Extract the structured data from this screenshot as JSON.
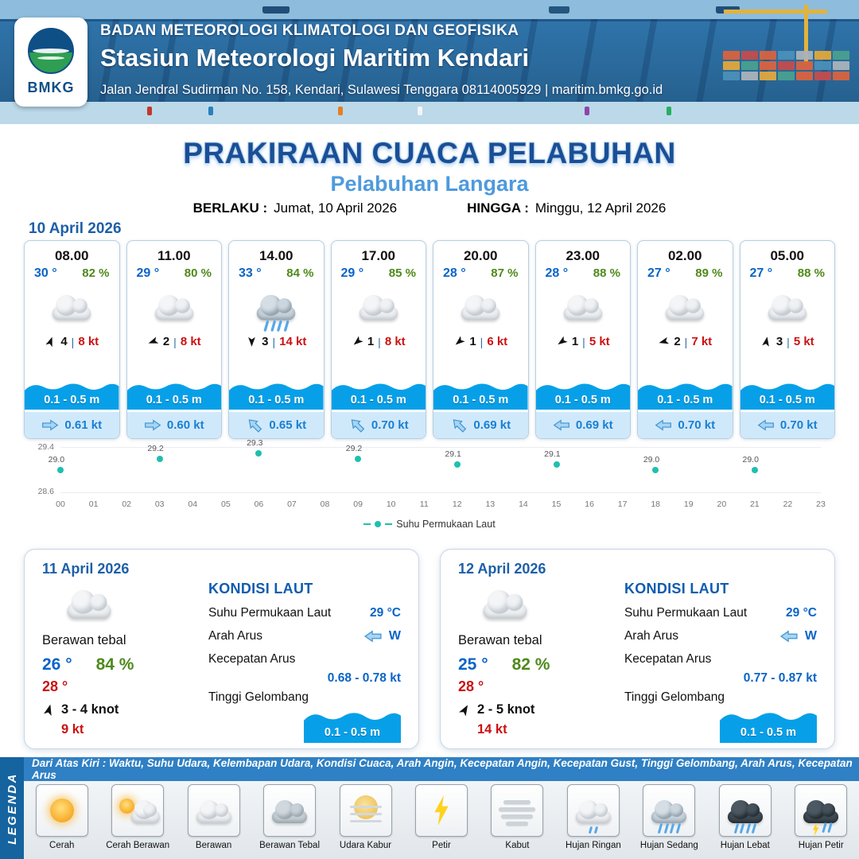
{
  "header": {
    "agency": "BADAN METEOROLOGI KLIMATOLOGI DAN GEOFISIKA",
    "station": "Stasiun Meteorologi Maritim Kendari",
    "address": "Jalan Jendral Sudirman No. 158, Kendari, Sulawesi Tenggara  08114005929 | maritim.bmkg.go.id",
    "logo_text": "BMKG"
  },
  "title": {
    "main": "PRAKIRAAN CUACA PELABUHAN",
    "port": "Pelabuhan Langara",
    "valid_label": "BERLAKU :",
    "valid_value": "Jumat, 10 April 2026",
    "until_label": "HINGGA :",
    "until_value": "Minggu, 12 April 2026"
  },
  "hourly": {
    "date": "10 April 2026",
    "cards": [
      {
        "time": "08.00",
        "temp": "30 °",
        "humidity": "82 %",
        "icon": "cloudy",
        "wind_dir_deg": 20,
        "wind_speed": "4",
        "gust": "8 kt",
        "wave": "0.1 - 0.5 m",
        "current_dir_deg": 0,
        "current": "0.61 kt"
      },
      {
        "time": "11.00",
        "temp": "29 °",
        "humidity": "80 %",
        "icon": "cloudy",
        "wind_dir_deg": 250,
        "wind_speed": "2",
        "gust": "8 kt",
        "wave": "0.1 - 0.5 m",
        "current_dir_deg": 0,
        "current": "0.60 kt"
      },
      {
        "time": "14.00",
        "temp": "33 °",
        "humidity": "84 %",
        "icon": "moderate-rain",
        "wind_dir_deg": 180,
        "wind_speed": "3",
        "gust": "14 kt",
        "wave": "0.1 - 0.5 m",
        "current_dir_deg": -135,
        "current": "0.65 kt"
      },
      {
        "time": "17.00",
        "temp": "29 °",
        "humidity": "85 %",
        "icon": "cloudy",
        "wind_dir_deg": 230,
        "wind_speed": "1",
        "gust": "8 kt",
        "wave": "0.1 - 0.5 m",
        "current_dir_deg": -135,
        "current": "0.70 kt"
      },
      {
        "time": "20.00",
        "temp": "28 °",
        "humidity": "87 %",
        "icon": "cloudy",
        "wind_dir_deg": 230,
        "wind_speed": "1",
        "gust": "6 kt",
        "wave": "0.1 - 0.5 m",
        "current_dir_deg": -135,
        "current": "0.69 kt"
      },
      {
        "time": "23.00",
        "temp": "28 °",
        "humidity": "88 %",
        "icon": "cloudy",
        "wind_dir_deg": 235,
        "wind_speed": "1",
        "gust": "5 kt",
        "wave": "0.1 - 0.5 m",
        "current_dir_deg": 180,
        "current": "0.69 kt"
      },
      {
        "time": "02.00",
        "temp": "27 °",
        "humidity": "89 %",
        "icon": "cloudy",
        "wind_dir_deg": 255,
        "wind_speed": "2",
        "gust": "7 kt",
        "wave": "0.1 - 0.5 m",
        "current_dir_deg": 180,
        "current": "0.70 kt"
      },
      {
        "time": "05.00",
        "temp": "27 °",
        "humidity": "88 %",
        "icon": "cloudy",
        "wind_dir_deg": 10,
        "wind_speed": "3",
        "gust": "5 kt",
        "wave": "0.1 - 0.5 m",
        "current_dir_deg": 180,
        "current": "0.70 kt"
      }
    ]
  },
  "chart_data": {
    "type": "scatter",
    "title": "",
    "legend": "Suhu Permukaan Laut",
    "x": [
      0,
      3,
      6,
      9,
      12,
      15,
      18,
      21
    ],
    "values": [
      29.0,
      29.2,
      29.3,
      29.2,
      29.1,
      29.1,
      29.0,
      29.0
    ],
    "x_ticks": [
      "00",
      "01",
      "02",
      "03",
      "04",
      "05",
      "06",
      "07",
      "08",
      "09",
      "10",
      "11",
      "12",
      "13",
      "14",
      "15",
      "16",
      "17",
      "18",
      "19",
      "20",
      "21",
      "22",
      "23"
    ],
    "ylim": [
      28.6,
      29.4
    ],
    "y_ticks": [
      "29.4",
      "28.6"
    ],
    "point_color": "#1fbfae",
    "grid": false,
    "legend_position": "bottom-center"
  },
  "daily": [
    {
      "date": "11 April 2026",
      "icon": "cloudy",
      "condition": "Berawan tebal",
      "temp_min": "26 °",
      "humidity": "84 %",
      "temp_max": "28 °",
      "wind_dir_deg": 15,
      "wind": "3 - 4 knot",
      "gust": "9 kt",
      "sea": {
        "title": "KONDISI LAUT",
        "sst_label": "Suhu Permukaan Laut",
        "sst": "29 °C",
        "current_dir_label": "Arah Arus",
        "current_dir": "W",
        "current_speed_label": "Kecepatan Arus",
        "current_speed": "0.68 - 0.78 kt",
        "wave_label": "Tinggi Gelombang",
        "wave": "0.1 - 0.5 m"
      }
    },
    {
      "date": "12 April 2026",
      "icon": "cloudy",
      "condition": "Berawan tebal",
      "temp_min": "25 °",
      "humidity": "82 %",
      "temp_max": "28 °",
      "wind_dir_deg": 30,
      "wind": "2 - 5 knot",
      "gust": "14 kt",
      "sea": {
        "title": "KONDISI LAUT",
        "sst_label": "Suhu Permukaan Laut",
        "sst": "29 °C",
        "current_dir_label": "Arah Arus",
        "current_dir": "W",
        "current_speed_label": "Kecepatan Arus",
        "current_speed": "0.77 - 0.87 kt",
        "wave_label": "Tinggi Gelombang",
        "wave": "0.1 - 0.5 m"
      }
    }
  ],
  "legend": {
    "vertical_label": "LEGENDA",
    "description": "Dari Atas Kiri : Waktu, Suhu Udara, Kelembapan Udara, Kondisi Cuaca, Arah Angin, Kecepatan Angin, Kecepatan Gust, Tinggi Gelombang, Arah Arus, Kecepatan Arus",
    "items": [
      {
        "label": "Cerah",
        "icon": "sunny"
      },
      {
        "label": "Cerah Berawan",
        "icon": "partly-cloudy"
      },
      {
        "label": "Berawan",
        "icon": "cloudy"
      },
      {
        "label": "Berawan Tebal",
        "icon": "overcast"
      },
      {
        "label": "Udara Kabur",
        "icon": "haze"
      },
      {
        "label": "Petir",
        "icon": "lightning"
      },
      {
        "label": "Kabut",
        "icon": "fog"
      },
      {
        "label": "Hujan Ringan",
        "icon": "light-rain"
      },
      {
        "label": "Hujan Sedang",
        "icon": "moderate-rain"
      },
      {
        "label": "Hujan Lebat",
        "icon": "heavy-rain"
      },
      {
        "label": "Hujan Petir",
        "icon": "thunderstorm"
      }
    ]
  },
  "colors": {
    "header_blue": "#2f74ab",
    "title_blue": "#1a4e96",
    "port_blue": "#4e9add",
    "temp_blue": "#0a64c8",
    "humidity_green": "#4e8a1a",
    "gust_red": "#cc1111",
    "wave_blue": "#07a0e8",
    "current_bg": "#cfe9fb",
    "current_text": "#1a7fd2",
    "sst_teal": "#1fbfae",
    "legend_bar_blue": "#2f80c4",
    "legenda_band_blue": "#15639f"
  }
}
